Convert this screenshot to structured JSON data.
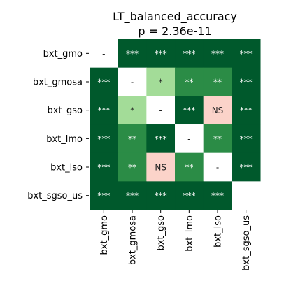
{
  "chart_data": {
    "type": "heatmap",
    "title": "LT_balanced_accuracy",
    "subtitle": "p = 2.36e-11",
    "rows": [
      "bxt_gmo",
      "bxt_gmosa",
      "bxt_gso",
      "bxt_lmo",
      "bxt_lso",
      "bxt_sgso_us"
    ],
    "columns": [
      "bxt_gmo",
      "bxt_gmosa",
      "bxt_gso",
      "bxt_lmo",
      "bxt_lso",
      "bxt_sgso_us"
    ],
    "cells": [
      [
        "-",
        "***",
        "***",
        "***",
        "***",
        "***"
      ],
      [
        "***",
        "-",
        "*",
        "**",
        "**",
        "***"
      ],
      [
        "***",
        "*",
        "-",
        "***",
        "NS",
        "***"
      ],
      [
        "***",
        "**",
        "***",
        "-",
        "**",
        "***"
      ],
      [
        "***",
        "**",
        "NS",
        "**",
        "-",
        "***"
      ],
      [
        "***",
        "***",
        "***",
        "***",
        "***",
        "-"
      ]
    ],
    "colors": {
      "***": "#00592c",
      "**": "#2b8c46",
      "*": "#a3dc98",
      "NS": "#fbd3c9",
      "-": "#ffffff"
    },
    "text_colors": {
      "***": "#ffffff",
      "**": "#ffffff",
      "*": "#222222",
      "NS": "#222222",
      "-": "#222222"
    }
  }
}
